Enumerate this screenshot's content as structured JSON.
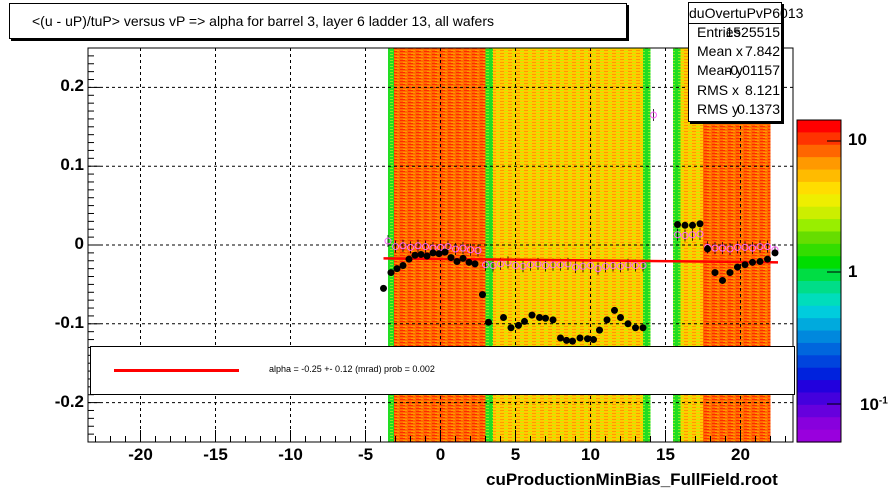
{
  "title": "<(u - uP)/tuP>  versus   vP => alpha for barrel 3, layer 6 ladder 13, all wafers",
  "stats": {
    "name": "duOvertuPvP6013",
    "rows": [
      {
        "label": "Entries",
        "value": "1525515"
      },
      {
        "label": "Mean x",
        "value": "7.842"
      },
      {
        "label": "Mean y",
        "value": "-0.01157"
      },
      {
        "label": "RMS x",
        "value": "8.121"
      },
      {
        "label": "RMS y",
        "value": "0.1373"
      }
    ]
  },
  "fit_text": "alpha =   -0.25 +-  0.12 (mrad) prob = 0.002",
  "footer": "cuProductionMinBias_FullField.root",
  "colors": {
    "fit": "#ff0000",
    "profile_open": "#ff66ff",
    "points": "#000000"
  },
  "chart_data": {
    "type": "heatmap",
    "xlim": [
      -23.5,
      23.5
    ],
    "ylim": [
      -0.25,
      0.25
    ],
    "x_ticks": [
      -20,
      -15,
      -10,
      -5,
      0,
      5,
      10,
      15,
      20
    ],
    "x_tick_labels": [
      "-20",
      "-15",
      "-10",
      "-5",
      "0",
      "5",
      "10",
      "15",
      "20"
    ],
    "y_ticks": [
      -0.2,
      -0.1,
      0,
      0.1,
      0.2
    ],
    "y_tick_labels": [
      "-0.2",
      "-0.1",
      "0",
      "0.1",
      "0.2"
    ],
    "z_scale": "log",
    "z_tick_labels": [
      "10",
      "1",
      "10-1"
    ],
    "grid": true,
    "bands": [
      {
        "x0": -3.5,
        "x1": -3.1,
        "level": "green"
      },
      {
        "x0": -3.1,
        "x1": 3.0,
        "level": "red"
      },
      {
        "x0": 3.0,
        "x1": 3.5,
        "level": "green"
      },
      {
        "x0": 3.5,
        "x1": 13.5,
        "level": "yellow"
      },
      {
        "x0": 13.5,
        "x1": 14.0,
        "level": "green"
      },
      {
        "x0": 15.5,
        "x1": 16.0,
        "level": "green"
      },
      {
        "x0": 16.0,
        "x1": 17.5,
        "level": "yellow"
      },
      {
        "x0": 17.5,
        "x1": 22.0,
        "level": "red"
      }
    ],
    "fit_line": {
      "x": [
        -3.8,
        22.5
      ],
      "y": [
        -0.017,
        -0.022
      ]
    },
    "mean_points": {
      "x": [
        -3.8,
        -3.3,
        -2.9,
        -2.5,
        -2.1,
        -1.7,
        -1.3,
        -0.9,
        -0.5,
        -0.1,
        0.3,
        0.7,
        1.1,
        1.5,
        1.9,
        2.3,
        2.8,
        3.2,
        4.2,
        4.7,
        5.2,
        5.6,
        6.1,
        6.6,
        7.0,
        7.5,
        8.0,
        8.4,
        8.8,
        9.3,
        9.8,
        10.2,
        10.6,
        11.1,
        11.6,
        12.0,
        12.5,
        13.0,
        13.5,
        15.8,
        16.3,
        16.8,
        17.3,
        17.8,
        18.3,
        18.8,
        19.3,
        19.8,
        20.3,
        20.8,
        21.3,
        21.8,
        22.3
      ],
      "y": [
        -0.055,
        -0.035,
        -0.03,
        -0.026,
        -0.018,
        -0.013,
        -0.012,
        -0.014,
        -0.01,
        -0.011,
        -0.009,
        -0.016,
        -0.021,
        -0.017,
        -0.022,
        -0.024,
        -0.063,
        -0.098,
        -0.092,
        -0.105,
        -0.102,
        -0.097,
        -0.089,
        -0.092,
        -0.093,
        -0.095,
        -0.118,
        -0.121,
        -0.122,
        -0.118,
        -0.119,
        -0.12,
        -0.108,
        -0.095,
        -0.083,
        -0.092,
        -0.1,
        -0.105,
        -0.105,
        0.026,
        0.025,
        0.025,
        0.027,
        -0.005,
        -0.035,
        -0.045,
        -0.035,
        -0.028,
        -0.025,
        -0.022,
        -0.021,
        -0.018,
        -0.01
      ]
    },
    "profile_points": {
      "x": [
        -3.5,
        -3.0,
        -2.5,
        -2.0,
        -1.5,
        -1.0,
        -0.5,
        0.0,
        0.5,
        1.0,
        1.5,
        2.0,
        2.5,
        3.0,
        3.5,
        4.0,
        4.5,
        5.0,
        5.5,
        6.0,
        6.5,
        7.0,
        7.5,
        8.0,
        8.5,
        9.0,
        9.5,
        10.0,
        10.5,
        11.0,
        11.5,
        12.0,
        12.5,
        13.0,
        13.5,
        14.2,
        15.8,
        16.3,
        16.8,
        17.3,
        17.8,
        18.3,
        18.8,
        19.3,
        19.8,
        20.3,
        20.8,
        21.3,
        21.8,
        22.3
      ],
      "y": [
        0.005,
        -0.002,
        -0.001,
        -0.003,
        -0.001,
        -0.002,
        -0.004,
        -0.003,
        -0.002,
        -0.005,
        -0.004,
        -0.006,
        -0.007,
        -0.025,
        -0.026,
        -0.024,
        -0.022,
        -0.026,
        -0.027,
        -0.025,
        -0.024,
        -0.026,
        -0.025,
        -0.025,
        -0.024,
        -0.028,
        -0.027,
        -0.026,
        -0.03,
        -0.027,
        -0.026,
        -0.027,
        -0.025,
        -0.026,
        -0.026,
        0.165,
        0.013,
        0.012,
        0.013,
        0.014,
        -0.003,
        -0.004,
        -0.004,
        -0.005,
        -0.003,
        -0.003,
        -0.004,
        -0.002,
        -0.002,
        -0.006
      ]
    }
  }
}
